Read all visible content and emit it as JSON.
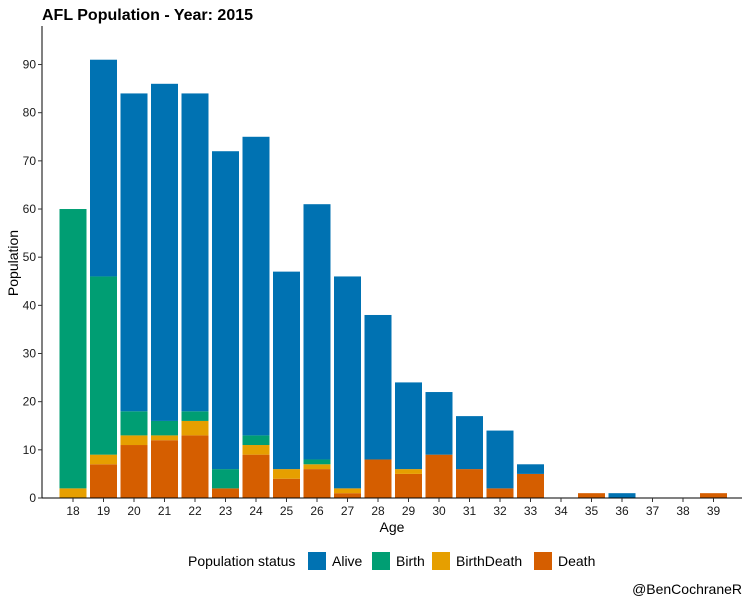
{
  "chart_data": {
    "type": "bar",
    "stacked": true,
    "title": "AFL Population - Year: 2015",
    "xlabel": "Age",
    "ylabel": "Population",
    "ylim": [
      0,
      98
    ],
    "yticks": [
      0,
      10,
      20,
      30,
      40,
      50,
      60,
      70,
      80,
      90
    ],
    "grid": false,
    "legend_title": "Population status",
    "legend_position": "bottom",
    "caption": "@BenCochraneR",
    "categories": [
      "18",
      "19",
      "20",
      "21",
      "22",
      "23",
      "24",
      "25",
      "26",
      "27",
      "28",
      "29",
      "30",
      "31",
      "32",
      "33",
      "34",
      "35",
      "36",
      "37",
      "38",
      "39"
    ],
    "series": [
      {
        "name": "Alive",
        "color": "#0072B2",
        "values": [
          0,
          45,
          66,
          70,
          66,
          66,
          62,
          41,
          53,
          44,
          30,
          18,
          13,
          11,
          12,
          2,
          0,
          0,
          1,
          0,
          0,
          0
        ]
      },
      {
        "name": "Birth",
        "color": "#009E73",
        "values": [
          58,
          37,
          5,
          3,
          2,
          4,
          2,
          0,
          1,
          0,
          0,
          0,
          0,
          0,
          0,
          0,
          0,
          0,
          0,
          0,
          0,
          0
        ]
      },
      {
        "name": "BirthDeath",
        "color": "#E69F00",
        "values": [
          2,
          2,
          2,
          1,
          3,
          0,
          2,
          2,
          1,
          1,
          0,
          1,
          0,
          0,
          0,
          0,
          0,
          0,
          0,
          0,
          0,
          0
        ]
      },
      {
        "name": "Death",
        "color": "#D55E00",
        "values": [
          0,
          7,
          11,
          12,
          13,
          2,
          9,
          4,
          6,
          1,
          8,
          5,
          9,
          6,
          2,
          5,
          0,
          1,
          0,
          0,
          0,
          1
        ]
      }
    ]
  }
}
